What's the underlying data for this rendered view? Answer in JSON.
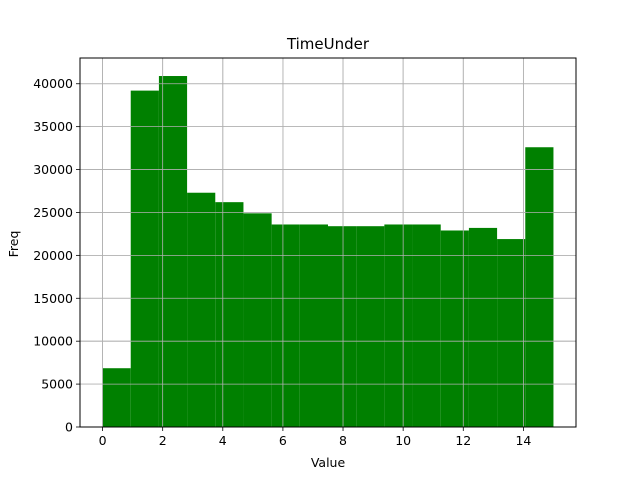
{
  "chart_data": {
    "type": "bar",
    "title": "TimeUnder",
    "xlabel": "Value",
    "ylabel": "Freq",
    "bin_edges": [
      0,
      0.9375,
      1.875,
      2.8125,
      3.75,
      4.6875,
      5.625,
      6.5625,
      7.5,
      8.4375,
      9.375,
      10.3125,
      11.25,
      12.1875,
      13.125,
      14.0625,
      15
    ],
    "values": [
      6850,
      39200,
      40900,
      27300,
      26200,
      24900,
      23600,
      23600,
      23400,
      23400,
      23600,
      23600,
      22900,
      23200,
      21900,
      32600
    ],
    "xlim": [
      -0.75,
      15.75
    ],
    "ylim": [
      0,
      43000
    ],
    "x_ticks": [
      0,
      2,
      4,
      6,
      8,
      10,
      12,
      14
    ],
    "y_ticks": [
      0,
      5000,
      10000,
      15000,
      20000,
      25000,
      30000,
      35000,
      40000
    ],
    "grid": true,
    "bar_color": "#008000"
  }
}
